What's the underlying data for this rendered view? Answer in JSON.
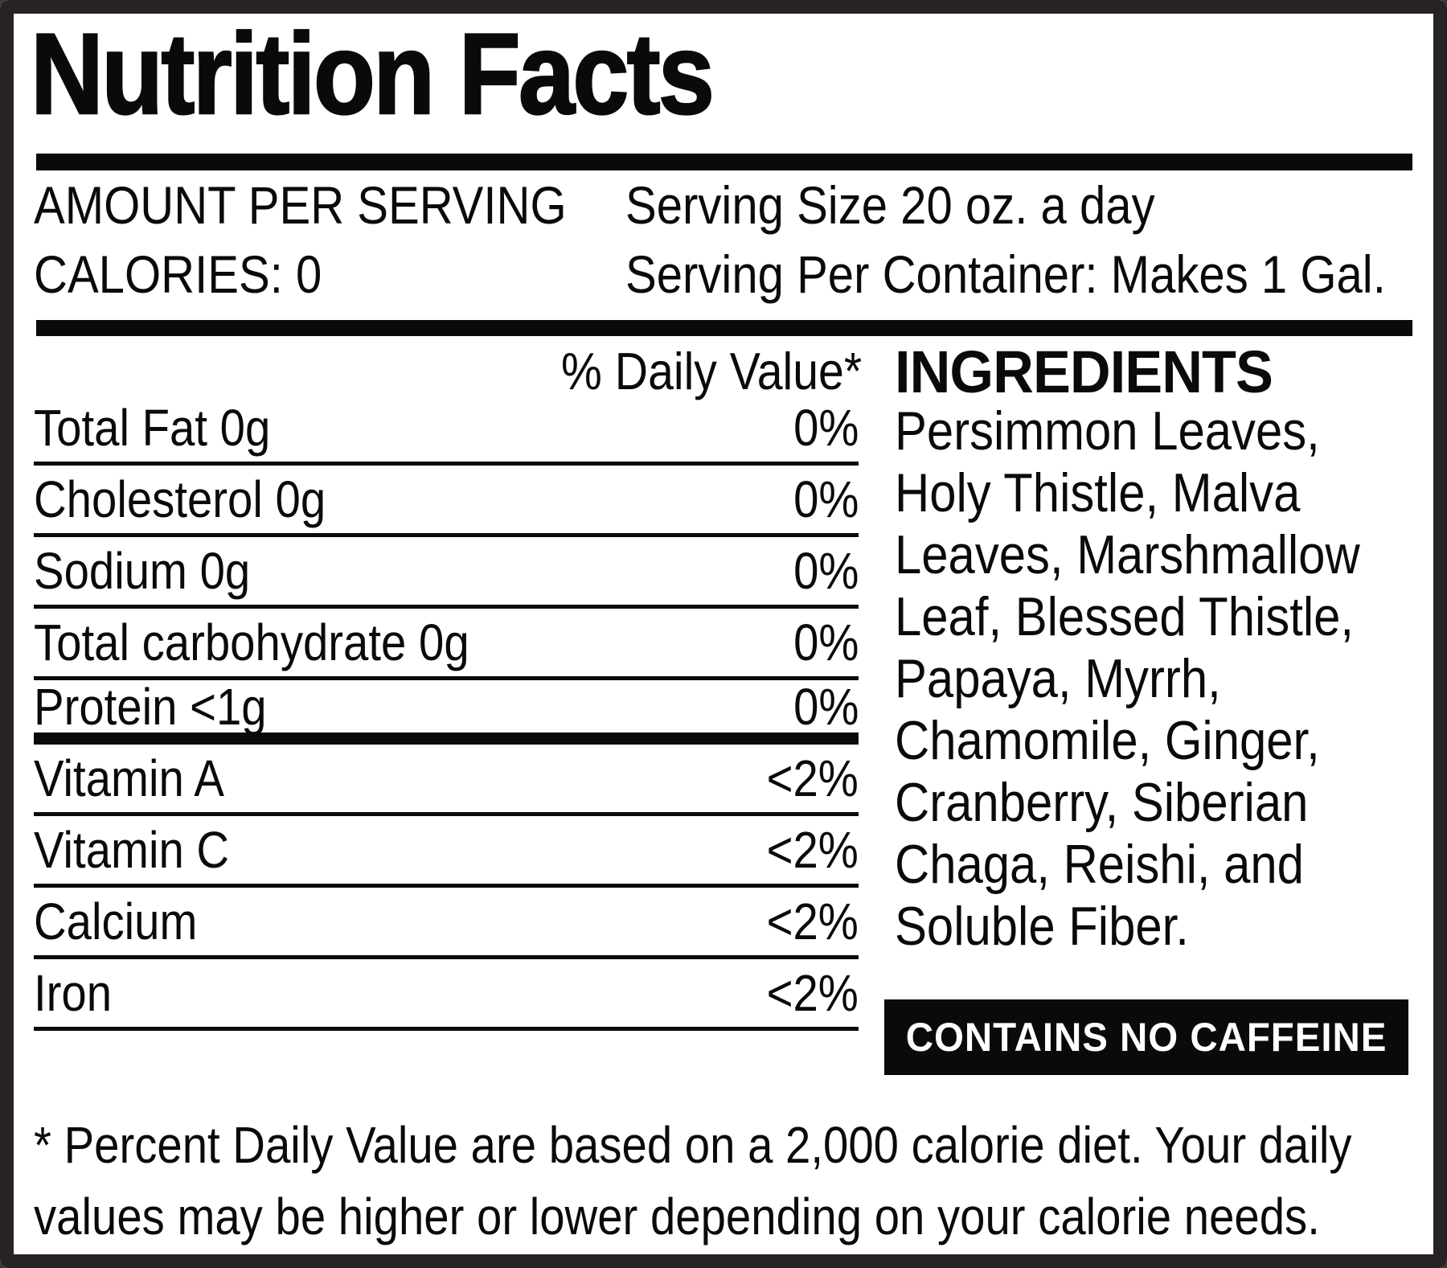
{
  "label": {
    "title": "Nutrition Facts",
    "header": {
      "amount_per_serving": "AMOUNT PER SERVING",
      "calories": "CALORIES: 0",
      "serving_size": "Serving Size 20 oz. a day",
      "servings_per_container": "Serving Per Container: Makes 1 Gal."
    },
    "daily_value_header": "% Daily Value*",
    "nutrients": [
      {
        "name": "Total Fat 0g",
        "dv": "0%"
      },
      {
        "name": "Cholesterol 0g",
        "dv": "0%"
      },
      {
        "name": "Sodium 0g",
        "dv": "0%"
      },
      {
        "name": "Total carbohydrate 0g",
        "dv": "0%"
      },
      {
        "name": "Protein <1g",
        "dv": "0%"
      },
      {
        "name": "Vitamin A",
        "dv": "<2%"
      },
      {
        "name": "Vitamin C",
        "dv": "<2%"
      },
      {
        "name": "Calcium",
        "dv": "<2%"
      },
      {
        "name": "Iron",
        "dv": "<2%"
      }
    ],
    "ingredients_title": "INGREDIENTS",
    "ingredients_lines": [
      "Persimmon Leaves,",
      "Holy Thistle, Malva",
      "Leaves, Marshmallow",
      "Leaf, Blessed Thistle,",
      "Papaya, Myrrh,",
      "Chamomile, Ginger,",
      "Cranberry, Siberian",
      "Chaga, Reishi, and",
      "Soluble Fiber."
    ],
    "caffeine_notice": "CONTAINS NO CAFFEINE",
    "footnote_lines": [
      "* Percent Daily Value are based on a 2,000 calorie diet. Your daily",
      "values may be higher or lower depending on your calorie needs."
    ],
    "colors": {
      "frame": "#272223",
      "text": "#0b0a0a",
      "notice_bg": "#0b0a0a",
      "notice_text": "#ffffff"
    }
  }
}
